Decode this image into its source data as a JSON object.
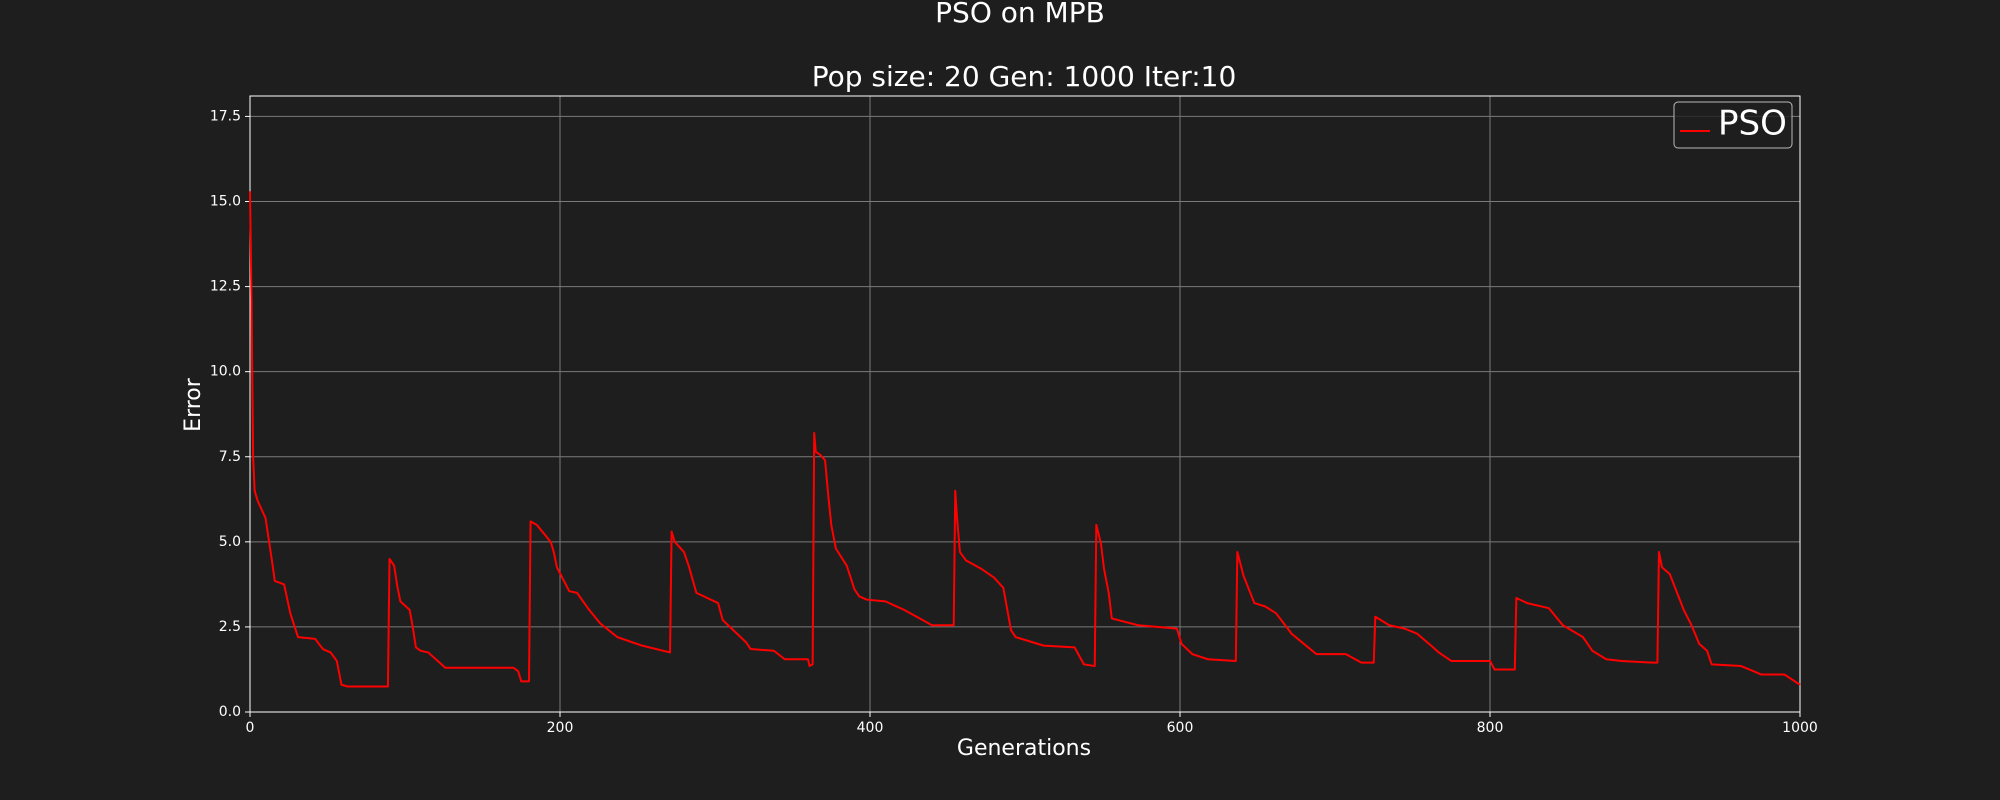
{
  "chart_data": {
    "type": "line",
    "title": "PSO on MPB",
    "subtitle": "Pop size: 20  Gen: 1000  Iter:10",
    "x_label": "Generations",
    "y_label": "Error",
    "x": [
      0,
      1,
      2,
      3,
      5,
      10,
      14,
      16,
      22,
      26,
      31,
      42,
      47,
      52,
      56,
      59,
      63,
      89,
      90,
      93,
      95,
      97,
      103,
      105,
      107,
      110,
      115,
      126,
      170,
      173,
      175,
      180,
      181,
      185,
      194,
      196,
      198,
      206,
      211,
      218,
      226,
      237,
      253,
      271,
      272,
      274,
      280,
      283,
      288,
      302,
      305,
      320,
      323,
      338,
      345,
      360,
      361,
      363,
      364,
      365,
      368,
      371,
      373,
      375,
      378,
      385,
      390,
      393,
      398,
      410,
      422,
      432,
      440,
      454,
      455,
      456,
      458,
      462,
      472,
      480,
      486,
      491,
      494,
      512,
      532,
      538,
      545,
      546,
      549,
      551,
      554,
      556,
      573,
      598,
      601,
      608,
      618,
      636,
      637,
      641,
      648,
      655,
      662,
      667,
      672,
      680,
      688,
      707,
      717,
      725,
      726,
      735,
      745,
      753,
      762,
      767,
      775,
      800,
      803,
      816,
      817,
      824,
      838,
      847,
      860,
      866,
      875,
      885,
      905,
      908,
      909,
      911,
      916,
      925,
      930,
      935,
      940,
      943,
      962,
      970,
      975,
      990,
      1000
    ],
    "series": [
      {
        "name": "PSO",
        "color": "#ff0000",
        "values": [
          15.3,
          12,
          7.5,
          6.5,
          6.2,
          5.7,
          4.5,
          3.85,
          3.75,
          2.9,
          2.2,
          2.15,
          1.85,
          1.75,
          1.5,
          0.8,
          0.75,
          0.75,
          4.5,
          4.3,
          3.7,
          3.25,
          3.0,
          2.5,
          1.9,
          1.8,
          1.75,
          1.3,
          1.3,
          1.2,
          0.9,
          0.9,
          5.6,
          5.5,
          5.0,
          4.7,
          4.25,
          3.55,
          3.5,
          3.05,
          2.6,
          2.2,
          1.95,
          1.75,
          5.3,
          5.0,
          4.7,
          4.3,
          3.5,
          3.2,
          2.7,
          2.05,
          1.85,
          1.8,
          1.55,
          1.55,
          1.35,
          1.4,
          8.2,
          7.65,
          7.55,
          7.4,
          6.4,
          5.5,
          4.8,
          4.3,
          3.6,
          3.4,
          3.3,
          3.25,
          3.0,
          2.75,
          2.55,
          2.55,
          6.5,
          5.8,
          4.7,
          4.45,
          4.2,
          3.95,
          3.65,
          2.4,
          2.2,
          1.95,
          1.9,
          1.4,
          1.35,
          5.5,
          4.95,
          4.2,
          3.5,
          2.75,
          2.55,
          2.45,
          2.0,
          1.7,
          1.55,
          1.5,
          4.7,
          4.0,
          3.2,
          3.1,
          2.9,
          2.6,
          2.3,
          2.0,
          1.7,
          1.7,
          1.45,
          1.45,
          2.8,
          2.55,
          2.45,
          2.3,
          1.95,
          1.75,
          1.5,
          1.5,
          1.25,
          1.25,
          3.35,
          3.2,
          3.05,
          2.55,
          2.2,
          1.8,
          1.55,
          1.5,
          1.45,
          1.45,
          4.7,
          4.25,
          4.05,
          3.0,
          2.55,
          2.0,
          1.8,
          1.4,
          1.35,
          1.2,
          1.1,
          1.1,
          0.8
        ]
      }
    ],
    "xlim": [
      0,
      1000
    ],
    "ylim": [
      0,
      18.1
    ],
    "xticks": [
      0,
      200,
      400,
      600,
      800,
      1000
    ],
    "yticks": [
      {
        "value": 0,
        "label": "0.0"
      },
      {
        "value": 2.5,
        "label": "2.5"
      },
      {
        "value": 5,
        "label": "5.0"
      },
      {
        "value": 7.5,
        "label": "7.5"
      },
      {
        "value": 10,
        "label": "10.0"
      },
      {
        "value": 12.5,
        "label": "12.5"
      },
      {
        "value": 15,
        "label": "15.0"
      },
      {
        "value": 17.5,
        "label": "17.5"
      }
    ],
    "grid": true,
    "legend": "upper right"
  }
}
